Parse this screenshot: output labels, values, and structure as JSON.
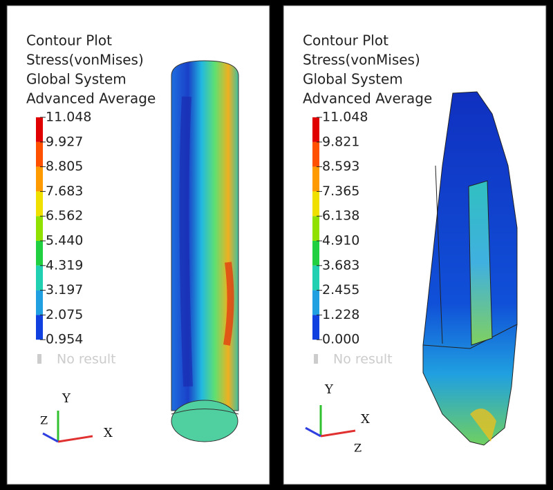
{
  "panels": [
    {
      "legend_title": [
        "Contour Plot",
        "Stress(vonMises)",
        "Global System",
        "Advanced Average"
      ],
      "legend_values": [
        "11.048",
        "9.927",
        "8.805",
        "7.683",
        "6.562",
        "5.440",
        "4.319",
        "3.197",
        "2.075",
        "0.954"
      ],
      "no_result": "No result",
      "axes": {
        "y": "Y",
        "z": "Z",
        "x": "X"
      }
    },
    {
      "legend_title": [
        "Contour Plot",
        "Stress(vonMises)",
        "Global System",
        "Advanced Average"
      ],
      "legend_values": [
        "11.048",
        "9.821",
        "8.593",
        "7.365",
        "6.138",
        "4.910",
        "3.683",
        "2.455",
        "1.228",
        "0.000"
      ],
      "no_result": "No result",
      "axes": {
        "y": "Y",
        "z": "Z",
        "x": "X"
      }
    }
  ]
}
